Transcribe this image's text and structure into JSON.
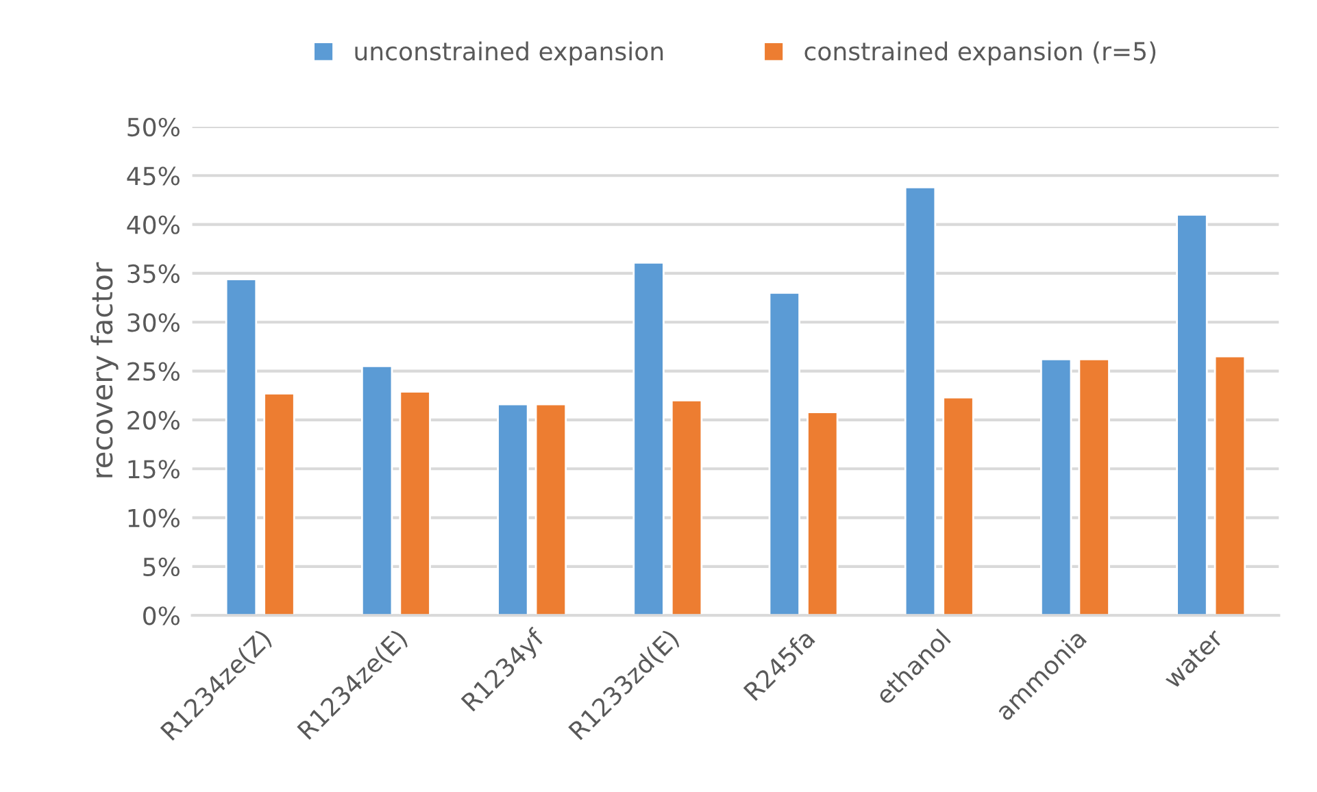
{
  "chart_data": {
    "type": "bar",
    "ylabel": "recovery factor",
    "categories": [
      "R1234ze(Z)",
      "R1234ze(E)",
      "R1234yf",
      "R1233zd(E)",
      "R245fa",
      "ethanol",
      "ammonia",
      "water"
    ],
    "series": [
      {
        "name": "unconstrained expansion",
        "color": "#5b9bd5",
        "values": [
          34.4,
          25.5,
          21.6,
          36.1,
          33.0,
          43.8,
          26.2,
          41.0
        ]
      },
      {
        "name": "constrained expansion (r=5)",
        "color": "#ed7d31",
        "values": [
          22.7,
          22.9,
          21.6,
          22.0,
          20.8,
          22.3,
          26.2,
          26.5
        ]
      }
    ],
    "ylim": [
      0,
      50
    ],
    "yticks": [
      {
        "value": 0,
        "label": "0%"
      },
      {
        "value": 5,
        "label": "5%"
      },
      {
        "value": 10,
        "label": "10%"
      },
      {
        "value": 15,
        "label": "15%"
      },
      {
        "value": 20,
        "label": "20%"
      },
      {
        "value": 25,
        "label": "25%"
      },
      {
        "value": 30,
        "label": "30%"
      },
      {
        "value": 35,
        "label": "35%"
      },
      {
        "value": 40,
        "label": "40%"
      },
      {
        "value": 45,
        "label": "45%"
      },
      {
        "value": 50,
        "label": "50%"
      }
    ],
    "grid": "y",
    "legend": "top"
  }
}
